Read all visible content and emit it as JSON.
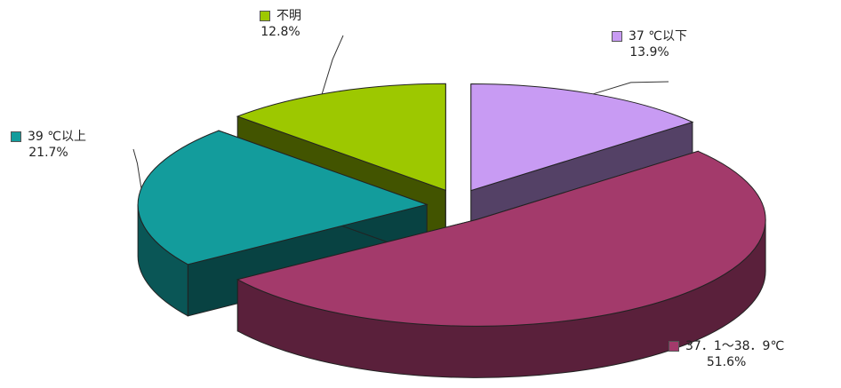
{
  "chart_data": {
    "type": "pie",
    "title": "",
    "exploded": true,
    "three_d": true,
    "slices": [
      {
        "name": "37 ℃以下",
        "label": "37 ℃以下",
        "value": 13.9,
        "value_label": "13.9%",
        "color": "#c89bf3"
      },
      {
        "name": "37．1〜38．9℃",
        "label": "37．1〜38．9℃",
        "value": 51.6,
        "value_label": "51.6%",
        "color": "#a33a6b"
      },
      {
        "name": "39 ℃以上",
        "label": "39 ℃以上",
        "value": 21.7,
        "value_label": "21.7%",
        "color": "#139c9c"
      },
      {
        "name": "不明",
        "label": "不明",
        "value": 12.8,
        "value_label": "12.8%",
        "color": "#9dc800"
      }
    ]
  }
}
